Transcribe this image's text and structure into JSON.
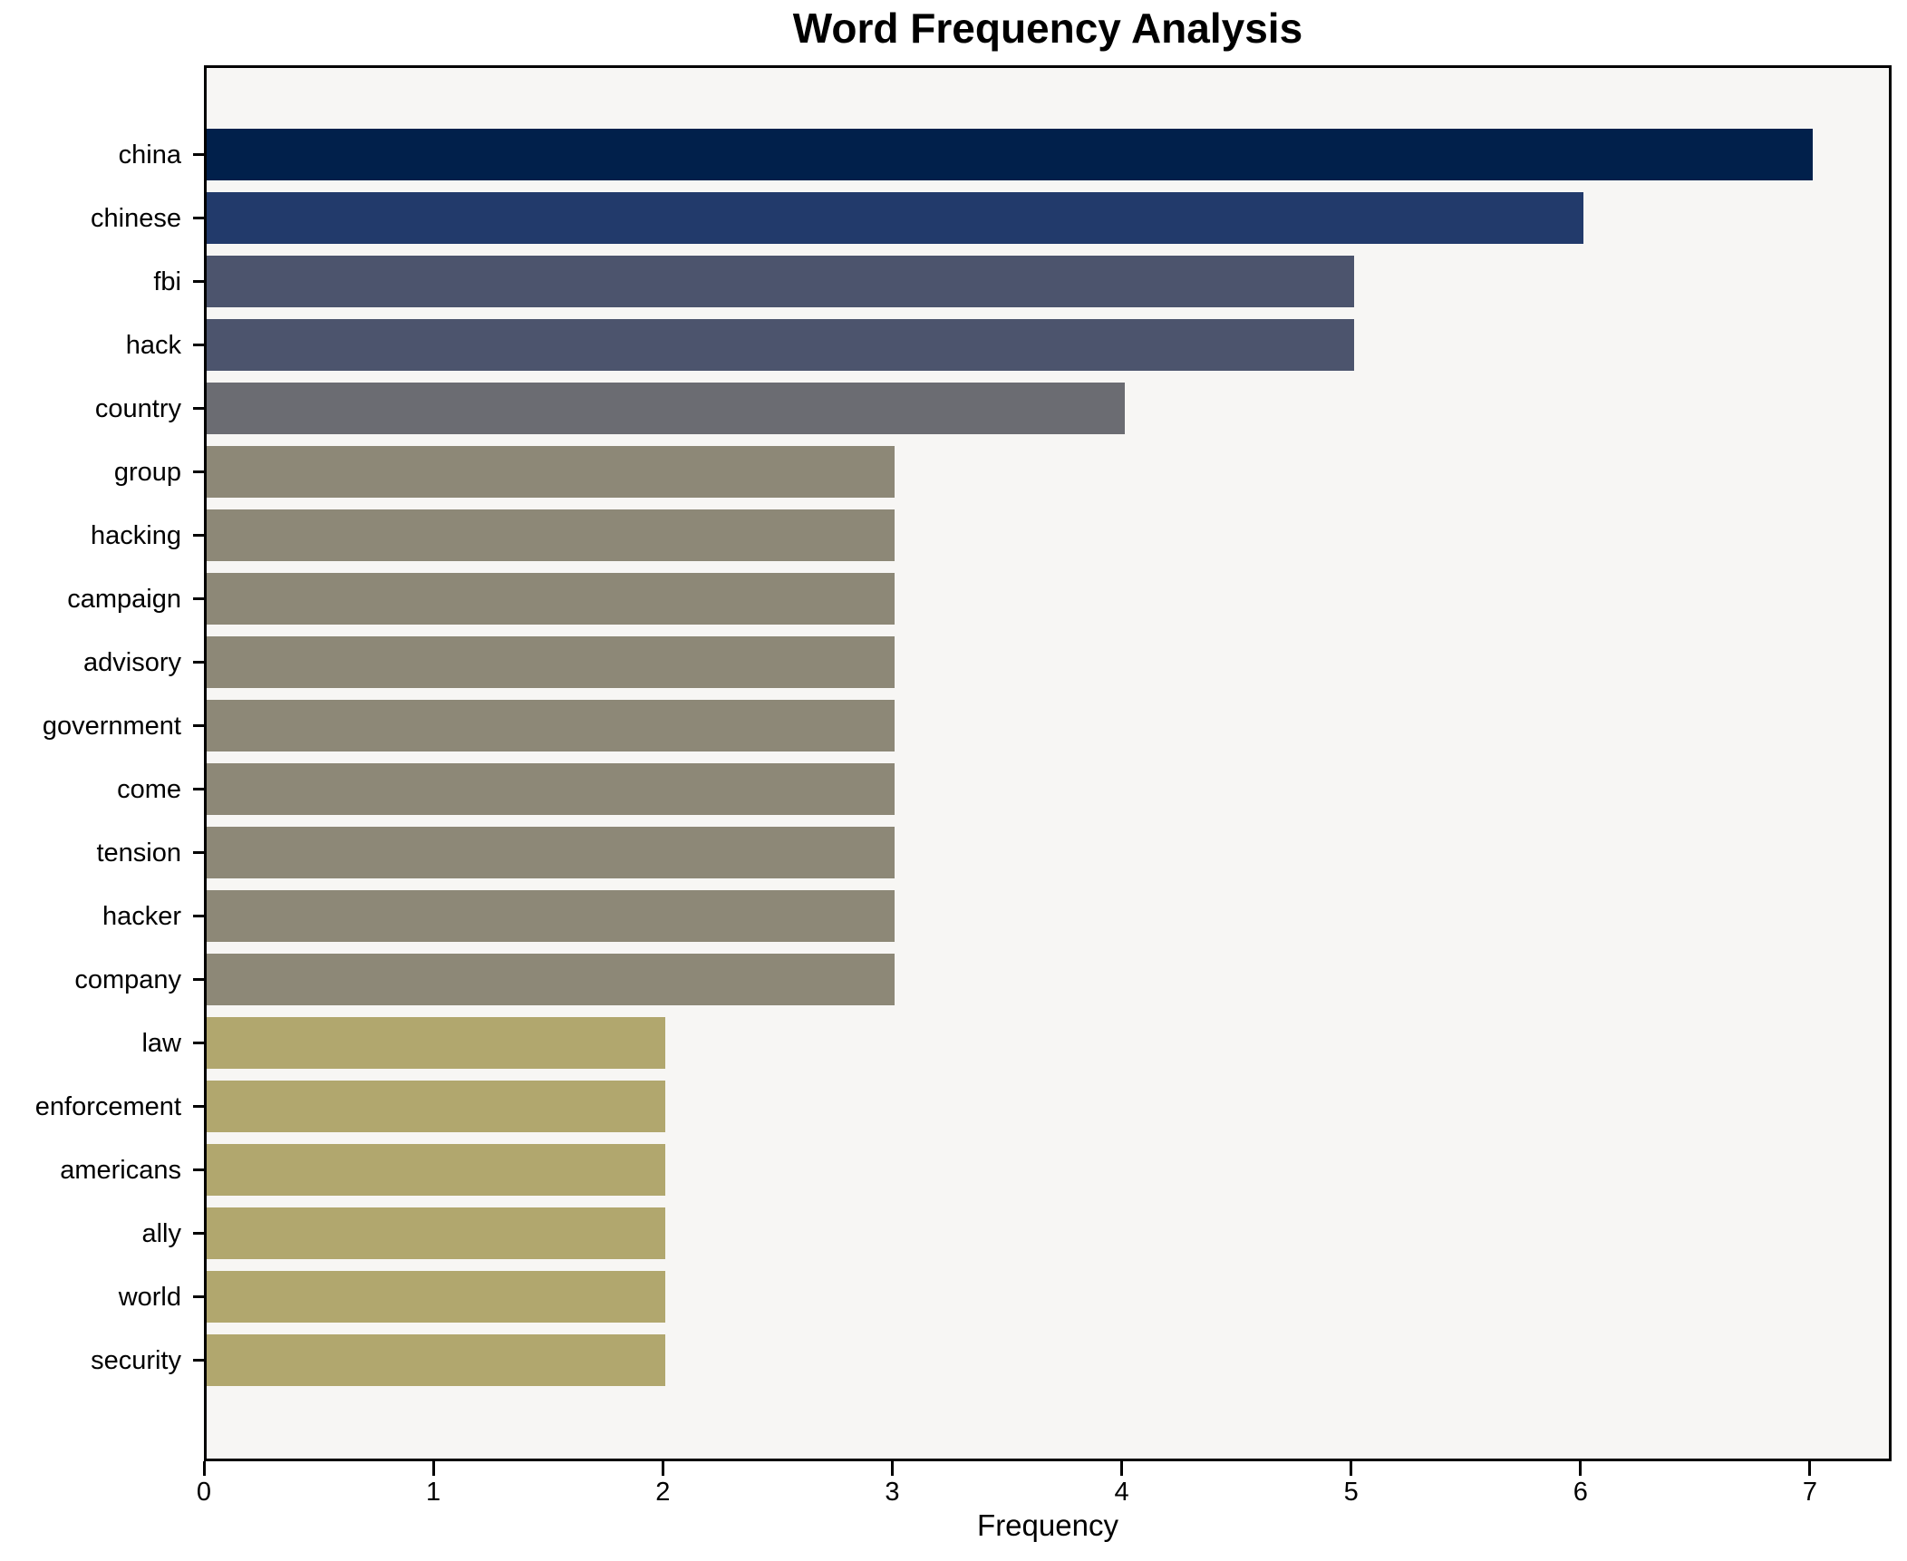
{
  "chart_data": {
    "type": "bar",
    "orientation": "horizontal",
    "title": "Word Frequency Analysis",
    "xlabel": "Frequency",
    "ylabel": "",
    "categories": [
      "china",
      "chinese",
      "fbi",
      "hack",
      "country",
      "group",
      "hacking",
      "campaign",
      "advisory",
      "government",
      "come",
      "tension",
      "hacker",
      "company",
      "law",
      "enforcement",
      "americans",
      "ally",
      "world",
      "security"
    ],
    "values": [
      7,
      6,
      5,
      5,
      4,
      3,
      3,
      3,
      3,
      3,
      3,
      3,
      3,
      3,
      2,
      2,
      2,
      2,
      2,
      2
    ],
    "bar_colors": [
      "#01204b",
      "#223a6b",
      "#4c546d",
      "#4c546d",
      "#6b6c72",
      "#8d8877",
      "#8d8877",
      "#8d8877",
      "#8d8877",
      "#8d8877",
      "#8d8877",
      "#8d8877",
      "#8d8877",
      "#8d8877",
      "#b1a76e",
      "#b1a76e",
      "#b1a76e",
      "#b1a76e",
      "#b1a76e",
      "#b1a76e"
    ],
    "xticks": [
      "0",
      "1",
      "2",
      "3",
      "4",
      "5",
      "6",
      "7"
    ],
    "xlim": [
      0,
      7.35
    ],
    "grid": false,
    "legend": false,
    "plot_background": "#f7f6f4",
    "spine_color": "#000000"
  }
}
